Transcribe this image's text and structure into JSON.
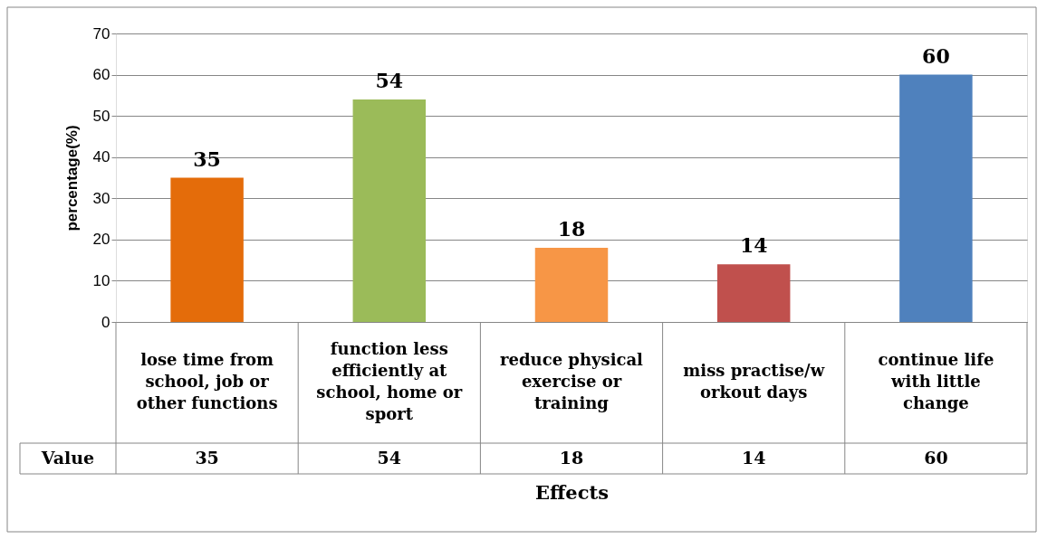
{
  "chart_data": {
    "type": "bar",
    "categories": [
      "lose time from school, job or other functions",
      "function less efficiently at school, home or sport",
      "reduce physical exercise or training",
      "miss practise/workout days",
      "continue life with little change"
    ],
    "values": [
      35,
      54,
      18,
      14,
      60
    ],
    "colors": [
      "#e46c0a",
      "#9bbb59",
      "#f79646",
      "#c0504d",
      "#4f81bd"
    ],
    "ylabel": "percentage(%)",
    "xlabel": "Effects",
    "annotations": [
      "Value"
    ],
    "value_labels": [
      "35",
      "54",
      "18",
      "14",
      "60"
    ],
    "ylim": [
      0,
      70
    ],
    "yticks": [
      0,
      10,
      20,
      30,
      40,
      50,
      60,
      70
    ],
    "grid": "y",
    "data_labels": true
  }
}
